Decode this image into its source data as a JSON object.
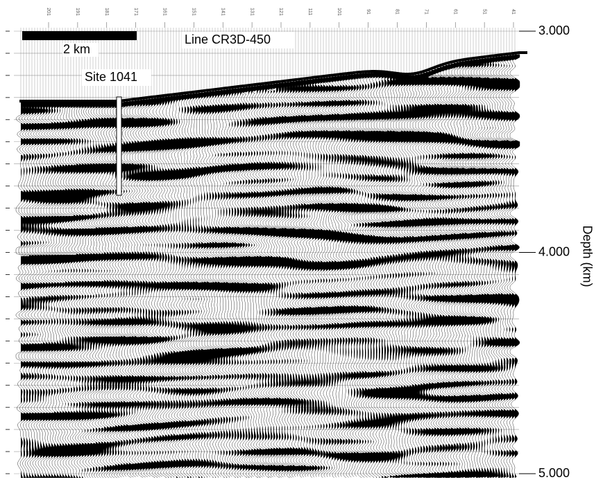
{
  "title": "Line CR3D-450",
  "scale_bar": "2 km",
  "site_label": "Site 1041",
  "axis": {
    "label": "Depth (km)",
    "ylim": [
      3,
      5
    ],
    "yticks": [
      {
        "value": 3,
        "label": "3.000"
      },
      {
        "value": 4,
        "label": "4.000"
      },
      {
        "value": 5,
        "label": "5.000"
      }
    ]
  },
  "trace_labels": [
    201,
    191,
    181,
    171,
    161,
    151,
    141,
    131,
    121,
    111,
    101,
    91,
    81,
    71,
    61,
    51,
    41
  ]
}
